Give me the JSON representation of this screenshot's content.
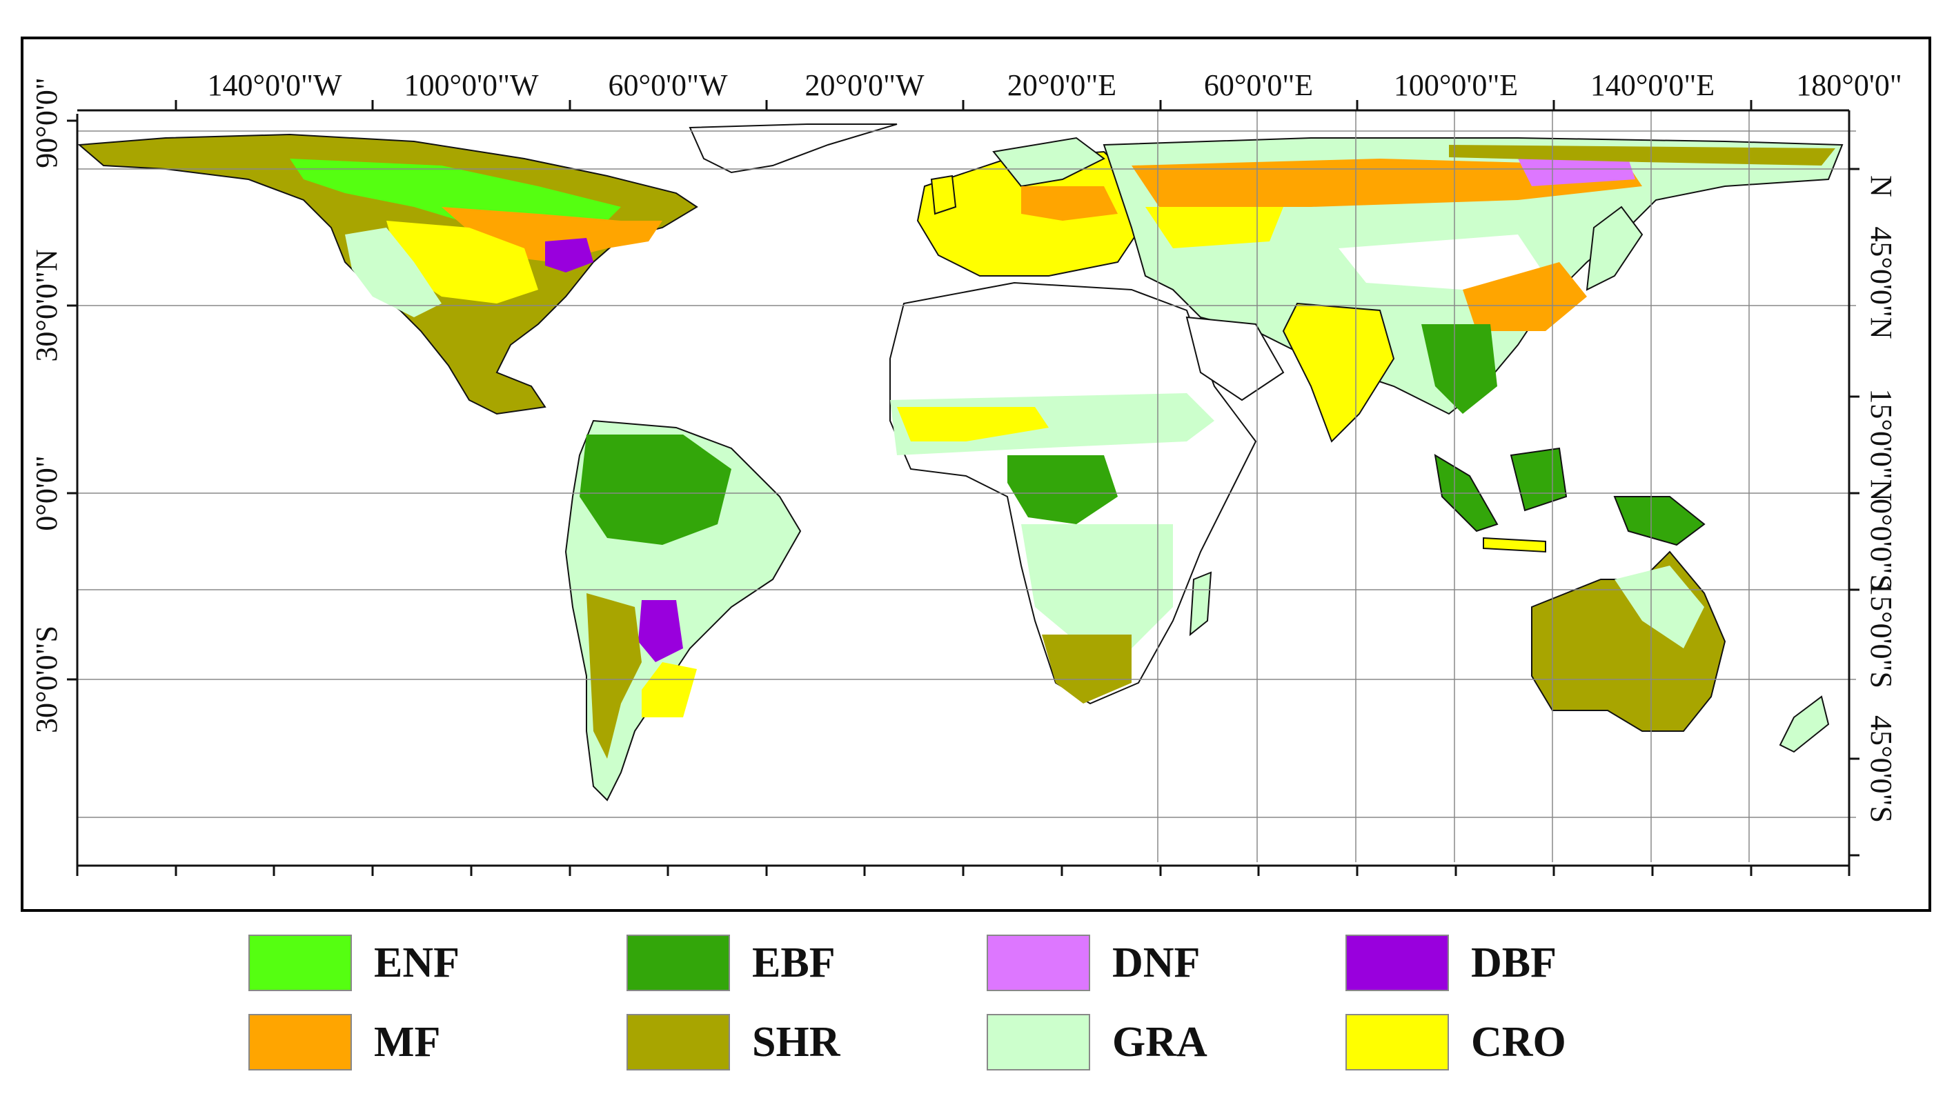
{
  "map": {
    "top_labels": [
      "140°0'0\"W",
      "100°0'0\"W",
      "60°0'0\"W",
      "20°0'0\"W",
      "20°0'0\"E",
      "60°0'0\"E",
      "100°0'0\"E",
      "140°0'0\"E",
      "180°0'0\""
    ],
    "left_labels": [
      "90°0'0\"",
      "30°0'0\"N",
      "0°0'0\"",
      "30°0'0\"S"
    ],
    "right_labels": [
      "N",
      "45°0'0\"N",
      "15°0'0\"N",
      "0°0'0\"S",
      "15°0'0\"S",
      "45°0'0\"S"
    ]
  },
  "legend": [
    {
      "code": "ENF",
      "color": "#55FF11"
    },
    {
      "code": "EBF",
      "color": "#33A60A"
    },
    {
      "code": "DNF",
      "color": "#DD77FF"
    },
    {
      "code": "DBF",
      "color": "#9900DD"
    },
    {
      "code": "MF",
      "color": "#FFA500"
    },
    {
      "code": "SHR",
      "color": "#A8A500"
    },
    {
      "code": "GRA",
      "color": "#CCFFCC"
    },
    {
      "code": "CRO",
      "color": "#FFFF00"
    }
  ]
}
